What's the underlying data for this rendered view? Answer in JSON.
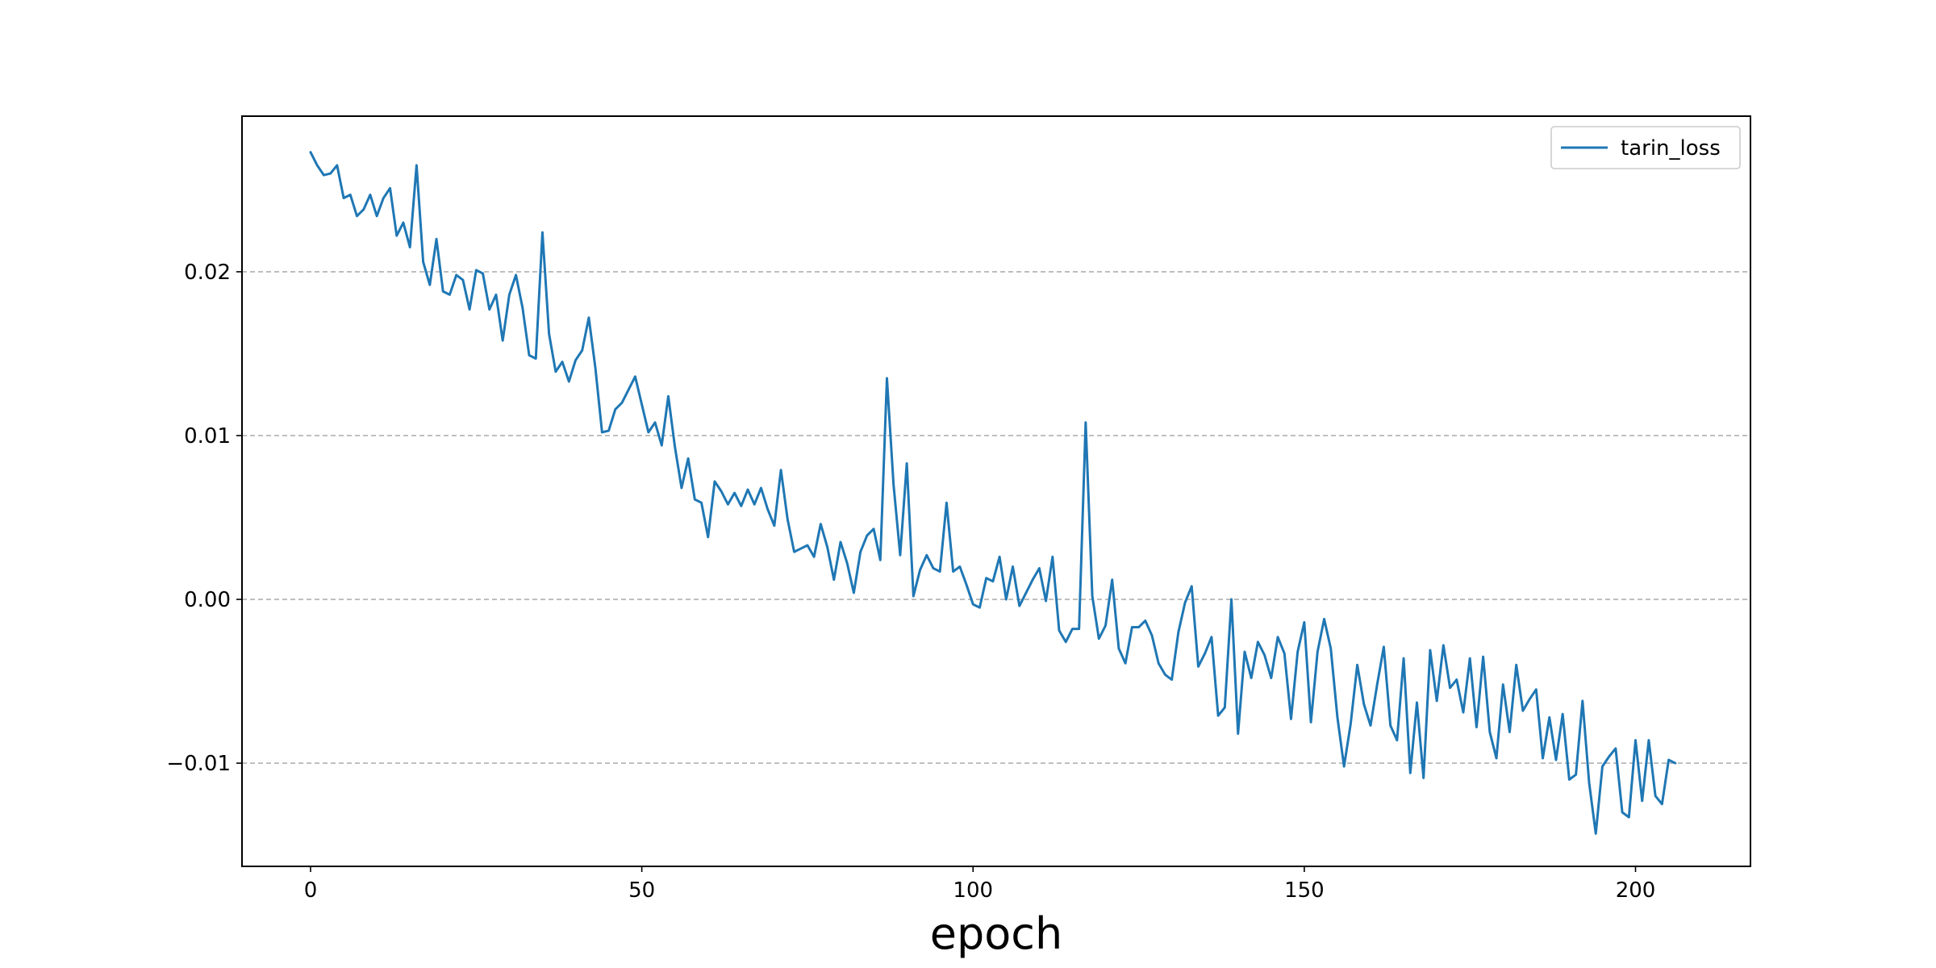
{
  "chart_data": {
    "type": "line",
    "title": "",
    "xlabel": "epoch",
    "ylabel": "",
    "xlim": [
      -10.35,
      217.35
    ],
    "ylim": [
      -0.0163,
      0.0295
    ],
    "xticks": [
      0,
      50,
      100,
      150,
      200
    ],
    "xtick_labels": [
      "0",
      "50",
      "100",
      "150",
      "200"
    ],
    "yticks": [
      -0.01,
      0.0,
      0.01,
      0.02
    ],
    "ytick_labels": [
      "−0.01",
      "0.00",
      "0.01",
      "0.02"
    ],
    "grid": {
      "axis": "y",
      "style": "dashed",
      "color": "#b0b0b0"
    },
    "legend": {
      "placement": "upper right",
      "entries": [
        "tarin_loss"
      ]
    },
    "series": [
      {
        "name": "tarin_loss",
        "color": "#1f77b4",
        "x_start": 0,
        "x_step": 1,
        "values": [
          0.0273,
          0.0265,
          0.0259,
          0.026,
          0.0265,
          0.0245,
          0.0247,
          0.0234,
          0.0238,
          0.0247,
          0.0234,
          0.0245,
          0.0251,
          0.0222,
          0.023,
          0.0215,
          0.0265,
          0.0206,
          0.0192,
          0.022,
          0.0188,
          0.0186,
          0.0198,
          0.0195,
          0.0177,
          0.0201,
          0.0199,
          0.0177,
          0.0186,
          0.0158,
          0.0186,
          0.0198,
          0.0178,
          0.0149,
          0.0147,
          0.0224,
          0.0162,
          0.0139,
          0.0145,
          0.0133,
          0.0146,
          0.0152,
          0.0172,
          0.0141,
          0.0102,
          0.0103,
          0.0116,
          0.012,
          0.0128,
          0.0136,
          0.0119,
          0.0102,
          0.0108,
          0.0094,
          0.0124,
          0.0093,
          0.0068,
          0.0086,
          0.0061,
          0.0059,
          0.0038,
          0.0072,
          0.0066,
          0.0058,
          0.0065,
          0.0057,
          0.0067,
          0.0058,
          0.0068,
          0.0055,
          0.0045,
          0.0079,
          0.0049,
          0.0029,
          0.0031,
          0.0033,
          0.0026,
          0.0046,
          0.0032,
          0.0012,
          0.0035,
          0.0022,
          0.0004,
          0.0029,
          0.0039,
          0.0043,
          0.0024,
          0.0135,
          0.007,
          0.0027,
          0.0083,
          0.0002,
          0.0018,
          0.0027,
          0.0019,
          0.0017,
          0.0059,
          0.0017,
          0.002,
          0.0009,
          -0.0003,
          -0.0005,
          0.0013,
          0.0011,
          0.0026,
          0.0,
          0.002,
          -0.0004,
          0.0004,
          0.0012,
          0.0019,
          -0.0001,
          0.0026,
          -0.0019,
          -0.0026,
          -0.0018,
          -0.0018,
          0.0108,
          0.0002,
          -0.0024,
          -0.0016,
          0.0012,
          -0.003,
          -0.0039,
          -0.0017,
          -0.0017,
          -0.0013,
          -0.0022,
          -0.0039,
          -0.0046,
          -0.0049,
          -0.002,
          -0.0002,
          0.0008,
          -0.0041,
          -0.0033,
          -0.0023,
          -0.0071,
          -0.0066,
          0.0,
          -0.0082,
          -0.0032,
          -0.0048,
          -0.0026,
          -0.0034,
          -0.0048,
          -0.0023,
          -0.0033,
          -0.0073,
          -0.0032,
          -0.0014,
          -0.0075,
          -0.0032,
          -0.0012,
          -0.003,
          -0.0072,
          -0.0102,
          -0.0076,
          -0.004,
          -0.0064,
          -0.0077,
          -0.0052,
          -0.0029,
          -0.0077,
          -0.0086,
          -0.0036,
          -0.0106,
          -0.0063,
          -0.0109,
          -0.0031,
          -0.0062,
          -0.0028,
          -0.0054,
          -0.0049,
          -0.0069,
          -0.0036,
          -0.0078,
          -0.0035,
          -0.0081,
          -0.0097,
          -0.0052,
          -0.0081,
          -0.004,
          -0.0068,
          -0.0061,
          -0.0055,
          -0.0097,
          -0.0072,
          -0.0098,
          -0.007,
          -0.011,
          -0.0107,
          -0.0062,
          -0.0112,
          -0.0143,
          -0.0102,
          -0.0096,
          -0.0091,
          -0.013,
          -0.0133,
          -0.0086,
          -0.0123,
          -0.0086,
          -0.012,
          -0.0125,
          -0.0098,
          -0.01
        ]
      }
    ]
  }
}
